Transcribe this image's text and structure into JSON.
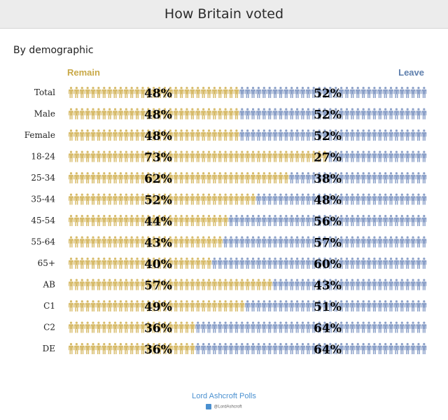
{
  "header": {
    "title": "How Britain voted"
  },
  "subtitle": "By demographic",
  "legend": {
    "remain": "Remain",
    "leave": "Leave"
  },
  "colors": {
    "remain": "#d7bb6a",
    "leave": "#8ba0c8",
    "remain_text": "#c9a948",
    "leave_text": "#5e7fad"
  },
  "chart_data": {
    "type": "bar",
    "stacked": true,
    "orientation": "horizontal",
    "title": "How Britain voted",
    "subtitle": "By demographic",
    "unit": "%",
    "categories": [
      "Total",
      "Male",
      "Female",
      "18-24",
      "25-34",
      "35-44",
      "45-54",
      "55-64",
      "65+",
      "AB",
      "C1",
      "C2",
      "DE"
    ],
    "series": [
      {
        "name": "Remain",
        "values": [
          48,
          48,
          48,
          73,
          62,
          52,
          44,
          43,
          40,
          57,
          49,
          36,
          36
        ]
      },
      {
        "name": "Leave",
        "values": [
          52,
          52,
          52,
          27,
          38,
          48,
          56,
          57,
          60,
          43,
          51,
          64,
          64
        ]
      }
    ],
    "data_labels": {
      "Remain": [
        "48%",
        "48%",
        "48%",
        "73%",
        "62%",
        "52%",
        "44%",
        "43%",
        "40%",
        "57%",
        "49%",
        "36%",
        "36%"
      ],
      "Leave": [
        "52%",
        "52%",
        "52%",
        "27%",
        "38%",
        "48%",
        "56%",
        "57%",
        "60%",
        "43%",
        "51%",
        "64%",
        "64%"
      ]
    }
  },
  "footer": {
    "source": "Lord Ashcroft Polls",
    "handle": "@LordAshcroft"
  }
}
